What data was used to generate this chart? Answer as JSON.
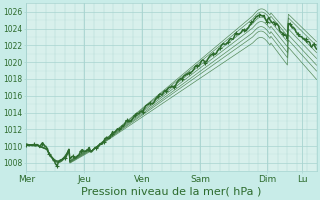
{
  "background_color": "#c8ece8",
  "plot_bg": "#d8f0ec",
  "grid_color_major": "#a8d4d0",
  "grid_color_minor": "#c0e4e0",
  "line_color": "#2d6b2d",
  "xlabel": "Pression niveau de la mer( hPa )",
  "xlabel_fontsize": 8,
  "ylim": [
    1007.0,
    1027.0
  ],
  "yticks": [
    1008,
    1010,
    1012,
    1014,
    1016,
    1018,
    1020,
    1022,
    1024,
    1026
  ],
  "days": [
    "Mer",
    "Jeu",
    "Ven",
    "Sam",
    "Dim",
    "Lu"
  ],
  "day_fracs": [
    0.0,
    0.2,
    0.4,
    0.6,
    0.83,
    0.95
  ],
  "total_points": 300,
  "n_forecasts": 7
}
